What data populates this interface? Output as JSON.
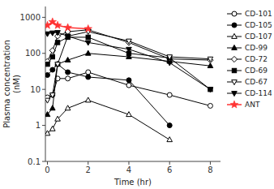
{
  "chart_data": {
    "type": "line",
    "x_label": "Time (hr)",
    "y_label": "Plasma concentration\n(nM)",
    "x": [
      0,
      0.25,
      0.5,
      1,
      2,
      4,
      6,
      8
    ],
    "series": [
      {
        "name": "CD-101",
        "color": "#000000",
        "marker": "circle-open",
        "values": [
          6,
          7,
          20,
          20,
          30,
          13,
          7,
          3.5
        ]
      },
      {
        "name": "CD-105",
        "color": "#000000",
        "marker": "circle",
        "values": [
          25,
          35,
          50,
          30,
          22,
          18,
          1,
          null
        ]
      },
      {
        "name": "CD-107",
        "color": "#000000",
        "marker": "triangle-open",
        "values": [
          0.6,
          0.8,
          1.5,
          3,
          5,
          2,
          0.4,
          null
        ]
      },
      {
        "name": "CD-99",
        "color": "#000000",
        "marker": "triangle",
        "values": [
          2,
          3,
          50,
          65,
          100,
          80,
          60,
          45
        ]
      },
      {
        "name": "CD-72",
        "color": "#000000",
        "marker": "diamond-open",
        "values": [
          60,
          120,
          300,
          400,
          450,
          200,
          70,
          65
        ]
      },
      {
        "name": "CD-69",
        "color": "#000000",
        "marker": "square",
        "values": [
          50,
          80,
          200,
          280,
          280,
          100,
          75,
          10
        ]
      },
      {
        "name": "CD-67",
        "color": "#000000",
        "marker": "triangle-down-open",
        "values": [
          5,
          7,
          50,
          300,
          400,
          220,
          80,
          70
        ]
      },
      {
        "name": "CD-114",
        "color": "#000000",
        "marker": "triangle-down",
        "values": [
          350,
          370,
          380,
          300,
          200,
          130,
          55,
          10
        ]
      },
      {
        "name": "ANT",
        "color": "#ff3333",
        "marker": "star",
        "values": [
          600,
          750,
          600,
          520,
          480,
          null,
          null,
          null
        ]
      }
    ],
    "xlim": [
      -0.1,
      8.5
    ],
    "xticks": [
      0,
      2,
      4,
      6,
      8
    ],
    "ylim": [
      0.1,
      2000
    ],
    "yticks": [
      0.1,
      1,
      10,
      100,
      1000
    ],
    "log": "y",
    "grid": false,
    "legend": "right"
  }
}
